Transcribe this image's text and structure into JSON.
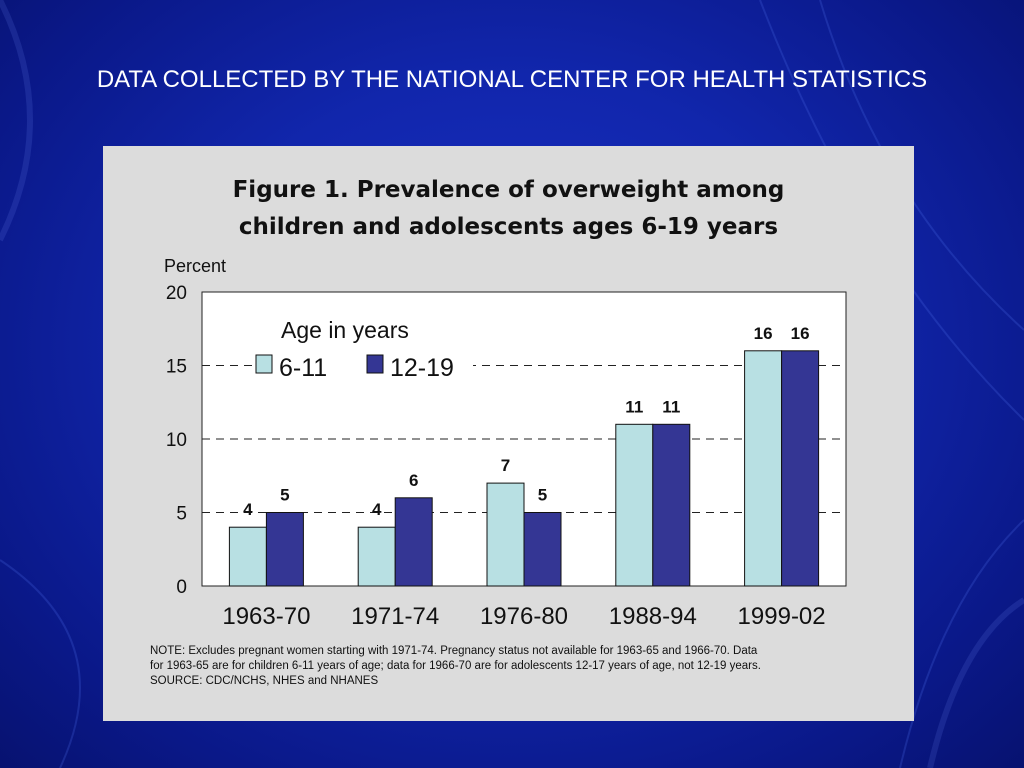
{
  "slide": {
    "title": "DATA COLLECTED BY THE NATIONAL CENTER FOR HEALTH STATISTICS"
  },
  "figure": {
    "title_line1": "Figure 1. Prevalence of overweight among",
    "title_line2": "children and adolescents ages 6-19 years",
    "note_line1": "NOTE:  Excludes pregnant women starting with 1971-74.  Pregnancy status not available for 1963-65 and 1966-70.  Data",
    "note_line2": "for 1963-65 are for children 6-11 years of age; data for 1966-70 are for adolescents 12-17 years of age, not 12-19 years.",
    "source": "SOURCE: CDC/NCHS, NHES and NHANES"
  },
  "colors": {
    "background": "#1126ac",
    "panel": "#dcdcdc",
    "series_6_11": "#b8e0e3",
    "series_12_19": "#343694"
  },
  "chart_data": {
    "type": "bar",
    "title": "Figure 1. Prevalence of overweight among children and adolescents ages 6-19 years",
    "ylabel": "Percent",
    "xlabel": "",
    "categories": [
      "1963-70",
      "1971-74",
      "1976-80",
      "1988-94",
      "1999-02"
    ],
    "series": [
      {
        "name": "6-11",
        "values": [
          4,
          4,
          7,
          11,
          16
        ],
        "color": "#b8e0e3"
      },
      {
        "name": "12-19",
        "values": [
          5,
          6,
          5,
          11,
          16
        ],
        "color": "#343694"
      }
    ],
    "ylim": [
      0,
      20
    ],
    "yticks": [
      0,
      5,
      10,
      15,
      20
    ],
    "legend_title": "Age in years",
    "legend_position": "top-left",
    "grid": "dashed horizontal at 5, 10, 15"
  }
}
